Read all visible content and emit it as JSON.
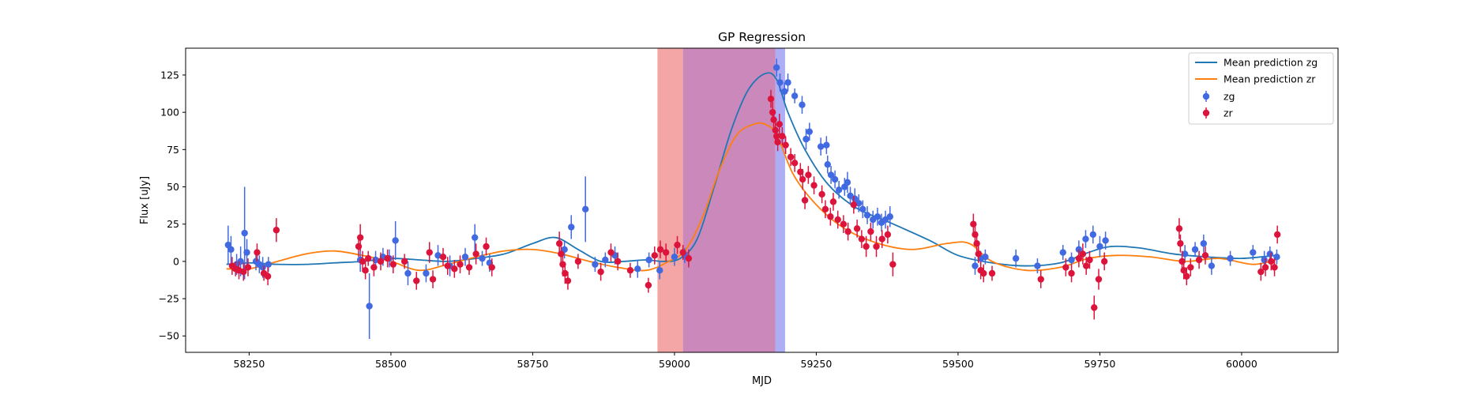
{
  "chart_data": {
    "type": "scatter",
    "title": "GP Regression",
    "xlabel": "MJD",
    "ylabel": "Flux [uJy]",
    "xlim": [
      58138,
      60170
    ],
    "ylim": [
      -61,
      143
    ],
    "xticks": [
      58250,
      58500,
      58750,
      59000,
      59250,
      59500,
      59750,
      60000
    ],
    "yticks": [
      -50,
      -25,
      0,
      25,
      50,
      75,
      100,
      125
    ],
    "legend_position": "top-right",
    "colors": {
      "zg_line": "#1f77b4",
      "zr_line": "#ff7f0e",
      "zg_points": "#4169e1",
      "zr_points": "#dc143c",
      "band_red": "#ff6b6b",
      "band_purple": "#a03f8f",
      "band_blue": "#7070ee"
    },
    "shaded_regions": [
      {
        "x0": 58970,
        "x1": 59015,
        "color": "#f08080"
      },
      {
        "x0": 59015,
        "x1": 59178,
        "color": "#b4559e"
      },
      {
        "x0": 59178,
        "x1": 59195,
        "color": "#8c8cf0"
      }
    ],
    "lines": [
      {
        "name": "Mean prediction zg",
        "color": "#1f77b4",
        "x": [
          58210,
          58250,
          58300,
          58350,
          58400,
          58450,
          58500,
          58550,
          58600,
          58650,
          58700,
          58750,
          58790,
          58830,
          58870,
          58910,
          58950,
          58980,
          59010,
          59040,
          59070,
          59100,
          59130,
          59160,
          59180,
          59200,
          59230,
          59270,
          59320,
          59380,
          59450,
          59500,
          59560,
          59620,
          59680,
          59730,
          59770,
          59820,
          59880,
          59940,
          60000,
          60060
        ],
        "y": [
          -2,
          -1,
          -2,
          -2,
          -1,
          0,
          2,
          1,
          0,
          2,
          5,
          12,
          16,
          8,
          0,
          0,
          1,
          0,
          2,
          15,
          50,
          88,
          115,
          126,
          122,
          100,
          75,
          52,
          36,
          26,
          14,
          4,
          -1,
          -3,
          -1,
          6,
          10,
          9,
          5,
          3,
          2,
          4
        ]
      },
      {
        "name": "Mean prediction zr",
        "color": "#ff7f0e",
        "x": [
          58210,
          58250,
          58300,
          58350,
          58400,
          58450,
          58500,
          58550,
          58600,
          58650,
          58700,
          58750,
          58800,
          58850,
          58900,
          58950,
          58990,
          59020,
          59050,
          59080,
          59110,
          59140,
          59160,
          59180,
          59210,
          59250,
          59300,
          59360,
          59420,
          59480,
          59520,
          59560,
          59620,
          59680,
          59730,
          59780,
          59840,
          59900,
          59960,
          60020,
          60060
        ],
        "y": [
          -5,
          -5,
          0,
          5,
          7,
          4,
          0,
          -6,
          -2,
          3,
          7,
          8,
          5,
          0,
          -4,
          -6,
          0,
          8,
          30,
          62,
          85,
          92,
          92,
          85,
          58,
          38,
          22,
          12,
          8,
          12,
          12,
          0,
          -6,
          -4,
          2,
          4,
          3,
          0,
          2,
          -2,
          1
        ]
      }
    ],
    "series": [
      {
        "name": "zg",
        "color": "#4169e1",
        "points": [
          [
            58213,
            11,
            13
          ],
          [
            58218,
            8,
            9
          ],
          [
            58228,
            -2,
            7
          ],
          [
            58235,
            0,
            10
          ],
          [
            58242,
            19,
            31
          ],
          [
            58246,
            6,
            9
          ],
          [
            58262,
            0,
            6
          ],
          [
            58268,
            -2,
            6
          ],
          [
            58274,
            -4,
            7
          ],
          [
            58284,
            -2,
            5
          ],
          [
            58446,
            1,
            8
          ],
          [
            58462,
            -30,
            22
          ],
          [
            58473,
            1,
            6
          ],
          [
            58486,
            3,
            6
          ],
          [
            58497,
            2,
            6
          ],
          [
            58508,
            14,
            13
          ],
          [
            58530,
            -8,
            8
          ],
          [
            58562,
            -8,
            6
          ],
          [
            58583,
            4,
            7
          ],
          [
            58604,
            -3,
            7
          ],
          [
            58631,
            3,
            6
          ],
          [
            58648,
            16,
            9
          ],
          [
            58661,
            2,
            5
          ],
          [
            58674,
            -1,
            6
          ],
          [
            58806,
            8,
            6
          ],
          [
            58818,
            23,
            8
          ],
          [
            58843,
            35,
            22
          ],
          [
            58860,
            -2,
            5
          ],
          [
            58878,
            1,
            5
          ],
          [
            58895,
            4,
            6
          ],
          [
            58935,
            -5,
            6
          ],
          [
            58955,
            1,
            5
          ],
          [
            58974,
            -6,
            6
          ],
          [
            59000,
            3,
            6
          ],
          [
            59018,
            4,
            5
          ],
          [
            59180,
            130,
            6
          ],
          [
            59186,
            120,
            6
          ],
          [
            59194,
            114,
            6
          ],
          [
            59200,
            120,
            6
          ],
          [
            59212,
            111,
            5
          ],
          [
            59225,
            105,
            6
          ],
          [
            59232,
            82,
            7
          ],
          [
            59238,
            87,
            6
          ],
          [
            59258,
            77,
            6
          ],
          [
            59268,
            78,
            6
          ],
          [
            59270,
            65,
            6
          ],
          [
            59276,
            58,
            6
          ],
          [
            59283,
            55,
            6
          ],
          [
            59290,
            48,
            6
          ],
          [
            59300,
            50,
            6
          ],
          [
            59305,
            53,
            7
          ],
          [
            59310,
            44,
            6
          ],
          [
            59318,
            42,
            7
          ],
          [
            59325,
            39,
            6
          ],
          [
            59332,
            35,
            6
          ],
          [
            59340,
            31,
            6
          ],
          [
            59350,
            28,
            6
          ],
          [
            59358,
            30,
            6
          ],
          [
            59365,
            26,
            6
          ],
          [
            59372,
            28,
            6
          ],
          [
            59380,
            30,
            7
          ],
          [
            59530,
            -3,
            6
          ],
          [
            59540,
            2,
            5
          ],
          [
            59548,
            3,
            5
          ],
          [
            59602,
            2,
            6
          ],
          [
            59640,
            -3,
            5
          ],
          [
            59685,
            6,
            5
          ],
          [
            59700,
            1,
            5
          ],
          [
            59713,
            8,
            6
          ],
          [
            59725,
            15,
            6
          ],
          [
            59738,
            18,
            6
          ],
          [
            59750,
            10,
            7
          ],
          [
            59760,
            14,
            6
          ],
          [
            59900,
            5,
            6
          ],
          [
            59918,
            8,
            5
          ],
          [
            59933,
            12,
            6
          ],
          [
            59947,
            -3,
            6
          ],
          [
            59980,
            2,
            5
          ],
          [
            60020,
            6,
            5
          ],
          [
            60040,
            1,
            6
          ],
          [
            60050,
            5,
            5
          ],
          [
            60062,
            3,
            5
          ]
        ]
      },
      {
        "name": "zr",
        "color": "#dc143c",
        "points": [
          [
            58220,
            -3,
            6
          ],
          [
            58226,
            -5,
            5
          ],
          [
            58232,
            -6,
            6
          ],
          [
            58240,
            -7,
            6
          ],
          [
            58248,
            -4,
            6
          ],
          [
            58264,
            6,
            6
          ],
          [
            58276,
            -8,
            5
          ],
          [
            58283,
            -10,
            6
          ],
          [
            58298,
            21,
            8
          ],
          [
            58443,
            10,
            7
          ],
          [
            58446,
            16,
            9
          ],
          [
            58450,
            0,
            7
          ],
          [
            58455,
            -6,
            6
          ],
          [
            58460,
            2,
            5
          ],
          [
            58470,
            -4,
            6
          ],
          [
            58482,
            0,
            6
          ],
          [
            58494,
            2,
            6
          ],
          [
            58504,
            -2,
            6
          ],
          [
            58524,
            0,
            5
          ],
          [
            58545,
            -13,
            6
          ],
          [
            58568,
            6,
            7
          ],
          [
            58574,
            -12,
            6
          ],
          [
            58592,
            3,
            6
          ],
          [
            58600,
            -3,
            6
          ],
          [
            58612,
            -5,
            6
          ],
          [
            58622,
            -2,
            6
          ],
          [
            58638,
            -4,
            5
          ],
          [
            58650,
            5,
            7
          ],
          [
            58668,
            10,
            6
          ],
          [
            58678,
            -4,
            6
          ],
          [
            58797,
            12,
            8
          ],
          [
            58800,
            5,
            7
          ],
          [
            58803,
            -2,
            8
          ],
          [
            58807,
            -8,
            7
          ],
          [
            58812,
            -13,
            6
          ],
          [
            58830,
            0,
            5
          ],
          [
            58870,
            -7,
            6
          ],
          [
            58888,
            6,
            6
          ],
          [
            58900,
            0,
            6
          ],
          [
            58922,
            -6,
            5
          ],
          [
            58954,
            -16,
            5
          ],
          [
            58965,
            4,
            6
          ],
          [
            58975,
            8,
            6
          ],
          [
            58985,
            6,
            6
          ],
          [
            59005,
            11,
            6
          ],
          [
            59015,
            6,
            5
          ],
          [
            59025,
            2,
            6
          ],
          [
            59170,
            109,
            6
          ],
          [
            59173,
            100,
            7
          ],
          [
            59175,
            95,
            6
          ],
          [
            59178,
            88,
            7
          ],
          [
            59180,
            84,
            6
          ],
          [
            59182,
            80,
            6
          ],
          [
            59185,
            92,
            7
          ],
          [
            59190,
            84,
            6
          ],
          [
            59196,
            78,
            6
          ],
          [
            59205,
            70,
            6
          ],
          [
            59212,
            66,
            6
          ],
          [
            59222,
            60,
            6
          ],
          [
            59226,
            55,
            7
          ],
          [
            59230,
            41,
            6
          ],
          [
            59236,
            58,
            6
          ],
          [
            59246,
            51,
            6
          ],
          [
            59260,
            45,
            6
          ],
          [
            59266,
            35,
            6
          ],
          [
            59275,
            30,
            6
          ],
          [
            59280,
            40,
            6
          ],
          [
            59288,
            28,
            6
          ],
          [
            59298,
            25,
            6
          ],
          [
            59306,
            20,
            6
          ],
          [
            59316,
            38,
            6
          ],
          [
            59322,
            22,
            6
          ],
          [
            59330,
            15,
            6
          ],
          [
            59338,
            10,
            7
          ],
          [
            59346,
            20,
            6
          ],
          [
            59356,
            10,
            7
          ],
          [
            59366,
            15,
            6
          ],
          [
            59376,
            18,
            6
          ],
          [
            59385,
            -2,
            8
          ],
          [
            59527,
            25,
            7
          ],
          [
            59530,
            18,
            6
          ],
          [
            59533,
            12,
            6
          ],
          [
            59536,
            5,
            6
          ],
          [
            59540,
            -6,
            6
          ],
          [
            59545,
            -8,
            6
          ],
          [
            59560,
            -8,
            5
          ],
          [
            59646,
            -12,
            6
          ],
          [
            59690,
            -4,
            6
          ],
          [
            59700,
            -8,
            6
          ],
          [
            59713,
            2,
            6
          ],
          [
            59720,
            5,
            7
          ],
          [
            59726,
            -3,
            6
          ],
          [
            59732,
            1,
            6
          ],
          [
            59740,
            -31,
            8
          ],
          [
            59748,
            -12,
            7
          ],
          [
            59758,
            0,
            6
          ],
          [
            59890,
            22,
            7
          ],
          [
            59892,
            12,
            6
          ],
          [
            59895,
            0,
            7
          ],
          [
            59898,
            -6,
            6
          ],
          [
            59903,
            -10,
            6
          ],
          [
            59910,
            -4,
            6
          ],
          [
            59925,
            1,
            6
          ],
          [
            59936,
            4,
            6
          ],
          [
            60034,
            -7,
            6
          ],
          [
            60042,
            -4,
            6
          ],
          [
            60052,
            0,
            6
          ],
          [
            60058,
            -4,
            6
          ],
          [
            60063,
            18,
            6
          ]
        ]
      }
    ]
  }
}
